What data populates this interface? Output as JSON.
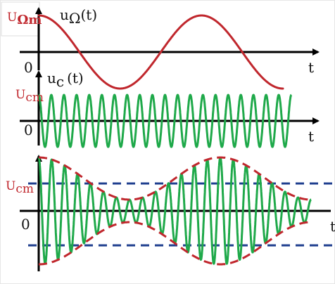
{
  "panel_top": {
    "amp_label_main": "U",
    "amp_label_sub": "Ωm",
    "func_main": "u",
    "func_sub": "Ω",
    "func_arg": "(t)",
    "origin": "0",
    "t_label": "t"
  },
  "panel_mid": {
    "amp_label_main": "U",
    "amp_label_sub": "cm",
    "func_main": "u",
    "func_sub": "c",
    "func_arg": "(t)",
    "origin": "0",
    "t_label": "t"
  },
  "panel_bottom": {
    "amp_label_main": "U",
    "amp_label_sub": "cm",
    "origin": "0",
    "t_label": "t"
  },
  "colors": {
    "modulating": "#c0272d",
    "carrier": "#1fa94a",
    "envelope": "#c0272d",
    "reference": "#1f3f8f",
    "axis": "#000000"
  }
}
